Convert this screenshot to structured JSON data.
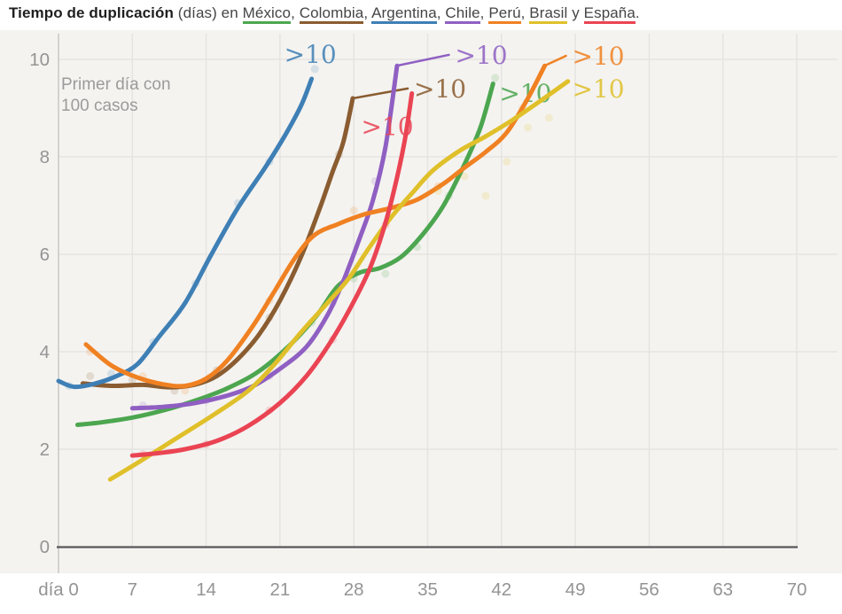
{
  "title": {
    "bold": "Tiempo de duplicación",
    "mid": " (días) en ",
    "separator": ", ",
    "last_separator": " y ",
    "terminator": ".",
    "countries": [
      {
        "name": "México",
        "color": "#4ca64f"
      },
      {
        "name": "Colombia",
        "color": "#8a5c30"
      },
      {
        "name": "Argentina",
        "color": "#3e7fb5"
      },
      {
        "name": "Chile",
        "color": "#8f5fc2"
      },
      {
        "name": "Perú",
        "color": "#f08122"
      },
      {
        "name": "Brasil",
        "color": "#e0c02a"
      },
      {
        "name": "España",
        "color": "#ea4453"
      }
    ]
  },
  "colors": {
    "plot_bg": "#f4f3f0",
    "grid": "#e5e4e1",
    "axis_y": "#c9c8c5",
    "axis_x": "#57575a",
    "tick_label": "#949494",
    "annotation": "#9b9b9b"
  },
  "chart_data": {
    "type": "line",
    "title": "Tiempo de duplicación (días) en México, Colombia, Argentina, Chile, Perú, Brasil y España",
    "xlabel": "día",
    "ylabel": "tiempo de duplicación (días)",
    "xlim": [
      0,
      74.5
    ],
    "ylim": [
      0,
      10.6
    ],
    "grid": true,
    "legend_position": "none (colored underlines in title, >10 end labels on lines)",
    "x_ticks": [
      0,
      7,
      14,
      21,
      28,
      35,
      42,
      49,
      56,
      63,
      70
    ],
    "x_tick_labels": [
      "día 0",
      "7",
      "14",
      "21",
      "28",
      "35",
      "42",
      "49",
      "56",
      "63",
      "70"
    ],
    "y_ticks": [
      0,
      2,
      4,
      6,
      8,
      10
    ],
    "annotation": {
      "line1": "Primer día con",
      "line2": "100 casos"
    },
    "series": [
      {
        "id": "mexico",
        "name": "México",
        "color": "#4ca64f",
        "end_label": ">10",
        "connector": false,
        "label_at": [
          41.8,
          9.13
        ],
        "points": [
          [
            1.8,
            2.5
          ],
          [
            4,
            2.55
          ],
          [
            7,
            2.65
          ],
          [
            10,
            2.8
          ],
          [
            13,
            3.0
          ],
          [
            16,
            3.25
          ],
          [
            19,
            3.6
          ],
          [
            22,
            4.15
          ],
          [
            24.5,
            4.75
          ],
          [
            26.5,
            5.35
          ],
          [
            28.5,
            5.62
          ],
          [
            30.5,
            5.72
          ],
          [
            32.5,
            5.95
          ],
          [
            34.5,
            6.4
          ],
          [
            36.5,
            7.0
          ],
          [
            38.5,
            7.85
          ],
          [
            40,
            8.6
          ],
          [
            41.2,
            9.5
          ]
        ],
        "dots": [
          [
            24,
            4.6
          ],
          [
            28,
            5.5
          ],
          [
            31,
            5.6
          ],
          [
            34,
            6.15
          ],
          [
            37,
            7.2
          ],
          [
            41.4,
            9.62
          ]
        ]
      },
      {
        "id": "colombia",
        "name": "Colombia",
        "color": "#8a5c30",
        "end_label": ">10",
        "connector": true,
        "label_at": [
          33.7,
          9.22
        ],
        "points": [
          [
            2.3,
            3.35
          ],
          [
            5,
            3.3
          ],
          [
            8,
            3.32
          ],
          [
            10.5,
            3.27
          ],
          [
            13,
            3.33
          ],
          [
            15,
            3.5
          ],
          [
            17,
            3.85
          ],
          [
            19,
            4.35
          ],
          [
            21,
            5.05
          ],
          [
            23,
            5.95
          ],
          [
            24.7,
            6.9
          ],
          [
            26,
            7.7
          ],
          [
            27,
            8.3
          ],
          [
            27.9,
            9.2
          ]
        ],
        "dots": [
          [
            3,
            3.5
          ],
          [
            7,
            3.42
          ],
          [
            11,
            3.2
          ],
          [
            15,
            3.62
          ],
          [
            20,
            4.7
          ],
          [
            26.6,
            8.05
          ]
        ]
      },
      {
        "id": "argentina",
        "name": "Argentina",
        "color": "#3e7fb5",
        "end_label": ">10",
        "connector": false,
        "label_at": [
          21.4,
          9.93
        ],
        "points": [
          [
            0,
            3.4
          ],
          [
            1.5,
            3.28
          ],
          [
            3.5,
            3.35
          ],
          [
            5.5,
            3.5
          ],
          [
            7.5,
            3.75
          ],
          [
            9.5,
            4.3
          ],
          [
            12,
            5.0
          ],
          [
            14.5,
            6.0
          ],
          [
            17,
            6.95
          ],
          [
            19.5,
            7.75
          ],
          [
            21.5,
            8.45
          ],
          [
            23,
            9.05
          ],
          [
            24,
            9.6
          ]
        ],
        "dots": [
          [
            1,
            3.3
          ],
          [
            5,
            3.55
          ],
          [
            9,
            4.2
          ],
          [
            13,
            5.4
          ],
          [
            17,
            7.05
          ],
          [
            20,
            7.9
          ],
          [
            24.3,
            9.8
          ]
        ]
      },
      {
        "id": "chile",
        "name": "Chile",
        "color": "#8f5fc2",
        "end_label": ">10",
        "connector": true,
        "label_at": [
          37.6,
          9.91
        ],
        "points": [
          [
            7,
            2.84
          ],
          [
            10,
            2.87
          ],
          [
            13,
            2.95
          ],
          [
            16,
            3.1
          ],
          [
            18.5,
            3.3
          ],
          [
            21,
            3.65
          ],
          [
            23.5,
            4.1
          ],
          [
            25.5,
            4.75
          ],
          [
            27,
            5.45
          ],
          [
            28.5,
            6.3
          ],
          [
            29.8,
            7.1
          ],
          [
            31,
            8.2
          ],
          [
            32.1,
            9.87
          ]
        ],
        "dots": [
          [
            8,
            2.9
          ],
          [
            14,
            3.0
          ],
          [
            20,
            3.5
          ],
          [
            26,
            5.0
          ],
          [
            30,
            7.5
          ]
        ]
      },
      {
        "id": "peru",
        "name": "Perú",
        "color": "#f08122",
        "end_label": ">10",
        "connector": true,
        "label_at": [
          48.7,
          9.89
        ],
        "points": [
          [
            2.6,
            4.15
          ],
          [
            5,
            3.72
          ],
          [
            7.5,
            3.47
          ],
          [
            10,
            3.33
          ],
          [
            12,
            3.3
          ],
          [
            14,
            3.45
          ],
          [
            16,
            3.82
          ],
          [
            18.5,
            4.55
          ],
          [
            20.5,
            5.25
          ],
          [
            22.5,
            5.95
          ],
          [
            24.3,
            6.4
          ],
          [
            26.5,
            6.62
          ],
          [
            29,
            6.82
          ],
          [
            31.5,
            6.95
          ],
          [
            34,
            7.12
          ],
          [
            36.5,
            7.45
          ],
          [
            38.5,
            7.78
          ],
          [
            40.5,
            8.1
          ],
          [
            42.5,
            8.5
          ],
          [
            44.5,
            9.2
          ],
          [
            46.1,
            9.87
          ]
        ],
        "dots": [
          [
            3,
            4.0
          ],
          [
            8,
            3.5
          ],
          [
            12,
            3.2
          ],
          [
            20,
            5.05
          ],
          [
            28,
            6.9
          ],
          [
            36,
            7.4
          ],
          [
            44,
            9.0
          ]
        ]
      },
      {
        "id": "brasil",
        "name": "Brasil",
        "color": "#e0c02a",
        "end_label": ">10",
        "connector": false,
        "label_at": [
          48.7,
          9.22
        ],
        "points": [
          [
            4.9,
            1.38
          ],
          [
            7.5,
            1.72
          ],
          [
            11,
            2.2
          ],
          [
            14.8,
            2.72
          ],
          [
            18,
            3.2
          ],
          [
            20.5,
            3.75
          ],
          [
            23,
            4.4
          ],
          [
            25.5,
            5.0
          ],
          [
            27.5,
            5.5
          ],
          [
            29.5,
            6.15
          ],
          [
            31.5,
            6.75
          ],
          [
            33.5,
            7.25
          ],
          [
            35.5,
            7.72
          ],
          [
            38,
            8.12
          ],
          [
            40.5,
            8.42
          ],
          [
            43,
            8.75
          ],
          [
            45.5,
            9.12
          ],
          [
            48.3,
            9.55
          ]
        ],
        "dots": [
          [
            36,
            7.3
          ],
          [
            38.5,
            7.6
          ],
          [
            40.5,
            7.2
          ],
          [
            42.5,
            7.9
          ],
          [
            44.5,
            8.6
          ],
          [
            46.5,
            8.8
          ]
        ]
      },
      {
        "id": "espana",
        "name": "España",
        "color": "#ea4453",
        "end_label": ">10",
        "connector": false,
        "label_at": [
          28.7,
          8.45
        ],
        "points": [
          [
            7,
            1.87
          ],
          [
            9.5,
            1.92
          ],
          [
            12,
            2.0
          ],
          [
            15,
            2.17
          ],
          [
            18,
            2.48
          ],
          [
            21,
            2.95
          ],
          [
            23.5,
            3.5
          ],
          [
            25.8,
            4.2
          ],
          [
            27.8,
            4.95
          ],
          [
            29.5,
            5.7
          ],
          [
            30.8,
            6.5
          ],
          [
            31.8,
            7.3
          ],
          [
            32.8,
            8.3
          ],
          [
            33.5,
            9.3
          ]
        ],
        "dots": [
          [
            8,
            1.9
          ],
          [
            14,
            2.1
          ],
          [
            20,
            2.8
          ],
          [
            26,
            4.25
          ],
          [
            31,
            6.6
          ]
        ]
      }
    ]
  }
}
